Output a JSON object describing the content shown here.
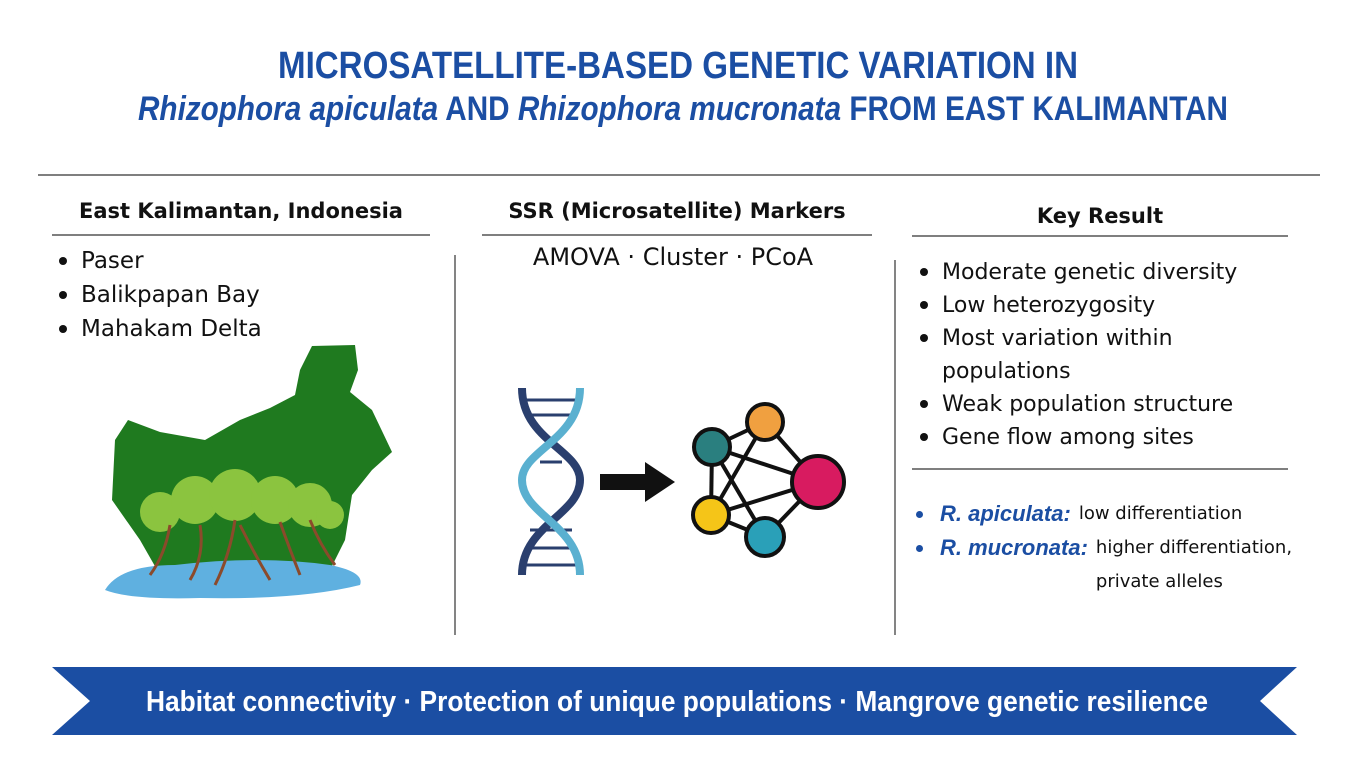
{
  "header": {
    "title_line1": "MICROSATELLITE-BASED GENETIC VARIATION IN",
    "title_line2": {
      "species1": "Rhizophora apiculata",
      "joiner": "AND",
      "species2": "Rhizophora mucronata",
      "tail": "FROM EAST KALIMANTAN"
    }
  },
  "location": {
    "heading": "East Kalimantan, Indonesia",
    "sites": [
      "Paser",
      "Balikpapan Bay",
      "Mahakam Delta"
    ]
  },
  "methods": {
    "heading": "SSR (Microsatellite) Markers",
    "analyses": "AMOVA · Cluster · PCoA"
  },
  "results": {
    "heading": "Key Result",
    "findings": [
      "Moderate genetic diversity",
      "Low heterozygosity",
      "Most variation within populations",
      "Weak population structure",
      "Gene flow among sites"
    ],
    "species": [
      {
        "name": "R. apiculata:",
        "text": "low differentiation"
      },
      {
        "name": "R. mucronata:",
        "text": "higher differentiation, private alleles"
      }
    ]
  },
  "banner": "Habitat connectivity · Protection of unique populations · Mangrove genetic resilience"
}
